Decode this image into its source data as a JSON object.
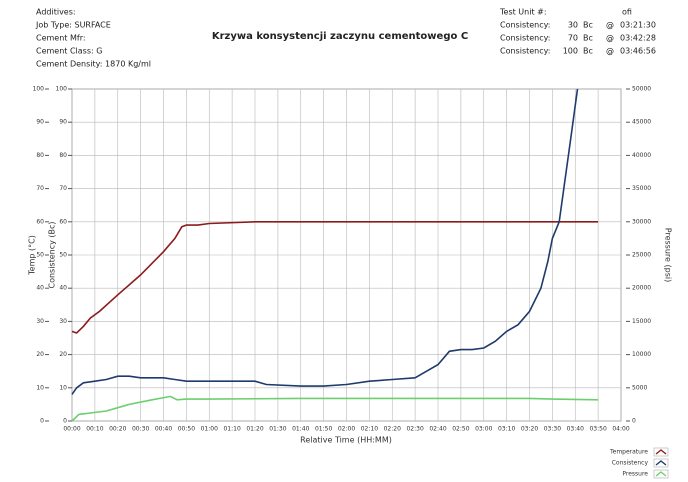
{
  "header": {
    "left": [
      "Additives:",
      "Job Type:  SURFACE",
      "Cement Mfr:",
      "Cement Class:  G",
      "Cement Density:     1870  Kg/ml"
    ],
    "test_unit_label": "Test Unit #:",
    "test_unit": "ofi",
    "consistency": [
      {
        "label": "Consistency:",
        "value": "30",
        "unit": "Bc",
        "at": "@",
        "time": "03:21:30"
      },
      {
        "label": "Consistency:",
        "value": "70",
        "unit": "Bc",
        "at": "@",
        "time": "03:42:28"
      },
      {
        "label": "Consistency:",
        "value": "100",
        "unit": "Bc",
        "at": "@",
        "time": "03:46:56"
      }
    ]
  },
  "chart_data": {
    "type": "line",
    "title": "Krzywa konsystencji zaczynu cementowego C",
    "x_label": "Relative Time (HH:MM)",
    "y_label": "Temp (°C)",
    "y_label_inner": "Consistency (Bc)",
    "y2_label": "Pressure (psi)",
    "xlim": [
      0,
      240
    ],
    "xticks": [
      {
        "value": 0,
        "label": "00:00"
      },
      {
        "value": 10,
        "label": "00:10"
      },
      {
        "value": 20,
        "label": "00:20"
      },
      {
        "value": 30,
        "label": "00:30"
      },
      {
        "value": 40,
        "label": "00:40"
      },
      {
        "value": 50,
        "label": "00:50"
      },
      {
        "value": 60,
        "label": "01:00"
      },
      {
        "value": 70,
        "label": "01:10"
      },
      {
        "value": 80,
        "label": "01:20"
      },
      {
        "value": 90,
        "label": "01:30"
      },
      {
        "value": 100,
        "label": "01:40"
      },
      {
        "value": 110,
        "label": "01:50"
      },
      {
        "value": 120,
        "label": "02:00"
      },
      {
        "value": 130,
        "label": "02:10"
      },
      {
        "value": 140,
        "label": "02:20"
      },
      {
        "value": 150,
        "label": "02:30"
      },
      {
        "value": 160,
        "label": "02:40"
      },
      {
        "value": 170,
        "label": "02:50"
      },
      {
        "value": 180,
        "label": "03:00"
      },
      {
        "value": 190,
        "label": "03:10"
      },
      {
        "value": 200,
        "label": "03:20"
      },
      {
        "value": 210,
        "label": "03:30"
      },
      {
        "value": 220,
        "label": "03:40"
      },
      {
        "value": 230,
        "label": "03:50"
      },
      {
        "value": 240,
        "label": "04:00"
      }
    ],
    "ylim": [
      0,
      100
    ],
    "yticks": [
      0,
      10,
      20,
      30,
      40,
      50,
      60,
      70,
      80,
      90,
      100
    ],
    "y2lim": [
      0,
      50000
    ],
    "y2ticks": [
      0,
      5000,
      10000,
      15000,
      20000,
      25000,
      30000,
      35000,
      40000,
      45000,
      50000
    ],
    "grid": true,
    "legend": "lower right",
    "series": [
      {
        "name": "Temperature",
        "color": "#8b1c1c",
        "x": [
          0,
          2,
          5,
          8,
          12,
          20,
          30,
          40,
          45,
          48,
          50,
          55,
          60,
          80,
          100,
          130,
          160,
          180,
          210,
          230
        ],
        "values": [
          27,
          26.5,
          28.5,
          31,
          33,
          38,
          44,
          51,
          55,
          58.5,
          59,
          59,
          59.5,
          60,
          60,
          60,
          60,
          60,
          60,
          60
        ]
      },
      {
        "name": "Consistency",
        "color": "#1f3a6e",
        "x": [
          0,
          2,
          5,
          10,
          15,
          20,
          25,
          30,
          40,
          45,
          50,
          60,
          70,
          80,
          85,
          100,
          110,
          120,
          130,
          140,
          150,
          155,
          160,
          165,
          170,
          175,
          180,
          185,
          190,
          195,
          200,
          205,
          208,
          210,
          213,
          215,
          218,
          221
        ],
        "values": [
          8,
          10,
          11.5,
          12,
          12.5,
          13.5,
          13.5,
          13,
          13,
          12.5,
          12,
          12,
          12,
          12,
          11,
          10.5,
          10.5,
          11,
          12,
          12.5,
          13,
          15,
          17,
          21,
          21.5,
          21.5,
          22,
          24,
          27,
          29,
          33,
          40,
          48,
          55,
          60,
          70,
          85,
          100
        ]
      },
      {
        "name": "Pressure",
        "color": "#6ccf6c",
        "axis": "y2",
        "x": [
          0,
          3,
          8,
          15,
          25,
          35,
          43,
          46,
          50,
          60,
          100,
          150,
          200,
          210,
          230
        ],
        "values": [
          0,
          1000,
          1200,
          1500,
          2500,
          3200,
          3700,
          3200,
          3300,
          3300,
          3400,
          3400,
          3400,
          3300,
          3200
        ]
      }
    ]
  }
}
